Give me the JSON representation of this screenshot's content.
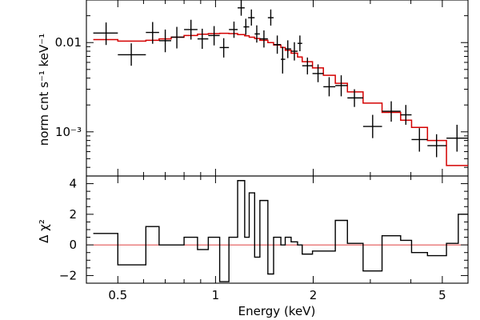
{
  "chart_data": [
    {
      "type": "scatter",
      "panel": "spectrum",
      "xlabel": "",
      "ylabel": "norm cnt s⁻¹ keV⁻¹",
      "xscale": "log",
      "yscale": "log",
      "xlim": [
        0.4,
        6.0
      ],
      "ylim": [
        0.00032,
        0.03
      ],
      "yticks": [
        {
          "value": 0.01,
          "label": "0.01"
        },
        {
          "value": 0.001,
          "label": "10⁻³"
        }
      ],
      "series": [
        {
          "kind": "data-with-errors",
          "color": "#000000",
          "points": [
            {
              "x": 0.46,
              "y": 0.0128,
              "xlo": 0.42,
              "xhi": 0.5,
              "ylo": 0.0094,
              "yhi": 0.0168
            },
            {
              "x": 0.55,
              "y": 0.0073,
              "xlo": 0.5,
              "xhi": 0.61,
              "ylo": 0.0055,
              "yhi": 0.0098
            },
            {
              "x": 0.64,
              "y": 0.013,
              "xlo": 0.61,
              "xhi": 0.67,
              "ylo": 0.0097,
              "yhi": 0.017
            },
            {
              "x": 0.7,
              "y": 0.0105,
              "xlo": 0.67,
              "xhi": 0.73,
              "ylo": 0.0078,
              "yhi": 0.014
            },
            {
              "x": 0.76,
              "y": 0.0115,
              "xlo": 0.73,
              "xhi": 0.8,
              "ylo": 0.0086,
              "yhi": 0.015
            },
            {
              "x": 0.84,
              "y": 0.014,
              "xlo": 0.8,
              "xhi": 0.88,
              "ylo": 0.0108,
              "yhi": 0.018
            },
            {
              "x": 0.91,
              "y": 0.011,
              "xlo": 0.88,
              "xhi": 0.95,
              "ylo": 0.0085,
              "yhi": 0.0143
            },
            {
              "x": 0.99,
              "y": 0.012,
              "xlo": 0.95,
              "xhi": 1.03,
              "ylo": 0.0093,
              "yhi": 0.0153
            },
            {
              "x": 1.06,
              "y": 0.0088,
              "xlo": 1.03,
              "xhi": 1.1,
              "ylo": 0.0068,
              "yhi": 0.0112
            },
            {
              "x": 1.14,
              "y": 0.014,
              "xlo": 1.1,
              "xhi": 1.17,
              "ylo": 0.0113,
              "yhi": 0.0172
            },
            {
              "x": 1.2,
              "y": 0.0245,
              "xlo": 1.17,
              "xhi": 1.23,
              "ylo": 0.02,
              "yhi": 0.03
            },
            {
              "x": 1.24,
              "y": 0.015,
              "xlo": 1.22,
              "xhi": 1.27,
              "ylo": 0.0122,
              "yhi": 0.0185
            },
            {
              "x": 1.29,
              "y": 0.019,
              "xlo": 1.26,
              "xhi": 1.32,
              "ylo": 0.0155,
              "yhi": 0.0235
            },
            {
              "x": 1.34,
              "y": 0.0125,
              "xlo": 1.32,
              "xhi": 1.37,
              "ylo": 0.01,
              "yhi": 0.0156
            },
            {
              "x": 1.41,
              "y": 0.011,
              "xlo": 1.37,
              "xhi": 1.45,
              "ylo": 0.0088,
              "yhi": 0.0137
            },
            {
              "x": 1.48,
              "y": 0.019,
              "xlo": 1.45,
              "xhi": 1.51,
              "ylo": 0.0155,
              "yhi": 0.0235
            },
            {
              "x": 1.55,
              "y": 0.0095,
              "xlo": 1.51,
              "xhi": 1.59,
              "ylo": 0.0075,
              "yhi": 0.012
            },
            {
              "x": 1.61,
              "y": 0.0065,
              "xlo": 1.59,
              "xhi": 1.64,
              "ylo": 0.0045,
              "yhi": 0.009
            },
            {
              "x": 1.67,
              "y": 0.0085,
              "xlo": 1.64,
              "xhi": 1.71,
              "ylo": 0.0067,
              "yhi": 0.0106
            },
            {
              "x": 1.75,
              "y": 0.008,
              "xlo": 1.71,
              "xhi": 1.79,
              "ylo": 0.0063,
              "yhi": 0.0101
            },
            {
              "x": 1.82,
              "y": 0.0098,
              "xlo": 1.79,
              "xhi": 1.85,
              "ylo": 0.008,
              "yhi": 0.012
            },
            {
              "x": 1.92,
              "y": 0.0055,
              "xlo": 1.85,
              "xhi": 1.99,
              "ylo": 0.0044,
              "yhi": 0.0068
            },
            {
              "x": 2.07,
              "y": 0.0045,
              "xlo": 1.99,
              "xhi": 2.15,
              "ylo": 0.0036,
              "yhi": 0.0057
            },
            {
              "x": 2.24,
              "y": 0.0032,
              "xlo": 2.15,
              "xhi": 2.34,
              "ylo": 0.0025,
              "yhi": 0.0041
            },
            {
              "x": 2.44,
              "y": 0.0033,
              "xlo": 2.34,
              "xhi": 2.55,
              "ylo": 0.0025,
              "yhi": 0.0043
            },
            {
              "x": 2.68,
              "y": 0.0024,
              "xlo": 2.55,
              "xhi": 2.85,
              "ylo": 0.0019,
              "yhi": 0.003
            },
            {
              "x": 3.05,
              "y": 0.00115,
              "xlo": 2.85,
              "xhi": 3.26,
              "ylo": 0.00085,
              "yhi": 0.00155
            },
            {
              "x": 3.48,
              "y": 0.0017,
              "xlo": 3.26,
              "xhi": 3.72,
              "ylo": 0.0013,
              "yhi": 0.0022
            },
            {
              "x": 3.86,
              "y": 0.00155,
              "xlo": 3.72,
              "xhi": 4.02,
              "ylo": 0.0012,
              "yhi": 0.002
            },
            {
              "x": 4.25,
              "y": 0.00082,
              "xlo": 4.02,
              "xhi": 4.5,
              "ylo": 0.0006,
              "yhi": 0.0011
            },
            {
              "x": 4.8,
              "y": 0.0007,
              "xlo": 4.5,
              "xhi": 5.15,
              "ylo": 0.00052,
              "yhi": 0.00094
            },
            {
              "x": 5.55,
              "y": 0.00085,
              "xlo": 5.15,
              "xhi": 6.0,
              "ylo": 0.0006,
              "yhi": 0.0012
            }
          ]
        },
        {
          "kind": "model-step",
          "color": "#d40000",
          "edges": [
            0.42,
            0.5,
            0.61,
            0.67,
            0.73,
            0.8,
            0.88,
            0.95,
            1.03,
            1.1,
            1.17,
            1.23,
            1.27,
            1.32,
            1.37,
            1.45,
            1.51,
            1.59,
            1.64,
            1.71,
            1.79,
            1.85,
            1.99,
            2.15,
            2.34,
            2.55,
            2.85,
            3.26,
            3.72,
            4.02,
            4.5,
            5.15,
            6.0
          ],
          "values": [
            0.0108,
            0.0104,
            0.0106,
            0.011,
            0.0115,
            0.012,
            0.0124,
            0.0126,
            0.0127,
            0.0126,
            0.0123,
            0.0119,
            0.0115,
            0.0111,
            0.0106,
            0.01,
            0.0094,
            0.0088,
            0.0082,
            0.0076,
            0.0069,
            0.0061,
            0.0052,
            0.0043,
            0.0035,
            0.0028,
            0.0021,
            0.00165,
            0.00135,
            0.00112,
            0.0008,
            0.00042
          ]
        }
      ]
    },
    {
      "type": "line",
      "panel": "residuals",
      "xlabel": "Energy (keV)",
      "ylabel": "Δ χ²",
      "xscale": "log",
      "yscale": "linear",
      "xlim": [
        0.4,
        6.0
      ],
      "ylim": [
        -2.5,
        4.5
      ],
      "xticks": [
        {
          "value": 0.5,
          "label": "0.5"
        },
        {
          "value": 1,
          "label": "1"
        },
        {
          "value": 2,
          "label": "2"
        },
        {
          "value": 5,
          "label": "5"
        }
      ],
      "yticks": [
        {
          "value": -2,
          "label": "−2"
        },
        {
          "value": 0,
          "label": "0"
        },
        {
          "value": 2,
          "label": "2"
        },
        {
          "value": 4,
          "label": "4"
        }
      ],
      "zero_line_color": "#d40000",
      "series": [
        {
          "kind": "residual-step",
          "color": "#000000",
          "edges": [
            0.42,
            0.5,
            0.61,
            0.67,
            0.73,
            0.8,
            0.88,
            0.95,
            1.03,
            1.1,
            1.17,
            1.23,
            1.27,
            1.32,
            1.37,
            1.45,
            1.51,
            1.59,
            1.64,
            1.71,
            1.79,
            1.85,
            1.99,
            2.15,
            2.34,
            2.55,
            2.85,
            3.26,
            3.72,
            4.02,
            4.5,
            5.15,
            5.6,
            6.0
          ],
          "values": [
            0.75,
            -1.3,
            1.2,
            0.0,
            0.0,
            0.5,
            -0.3,
            0.5,
            -2.4,
            0.5,
            4.2,
            0.5,
            3.4,
            -0.8,
            2.9,
            -1.9,
            0.5,
            0.0,
            0.5,
            0.2,
            0.0,
            -0.6,
            -0.4,
            -0.4,
            1.6,
            0.1,
            -1.7,
            0.6,
            0.3,
            -0.5,
            -0.7,
            0.1,
            2.0
          ]
        }
      ]
    }
  ]
}
